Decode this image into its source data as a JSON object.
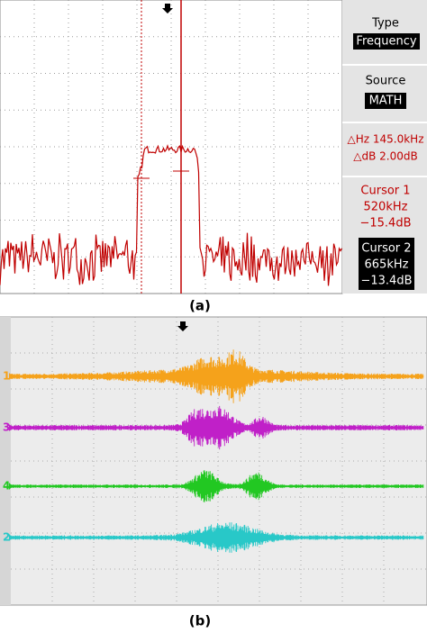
{
  "panel_a": {
    "sidebar": {
      "type_label": "Type",
      "type_value": "Frequency",
      "source_label": "Source",
      "source_value": "MATH",
      "delta_hz": "△Hz 145.0kHz",
      "delta_db": "△dB 2.00dB",
      "cursor1": {
        "title": "Cursor 1",
        "freq": "520kHz",
        "level": "−15.4dB"
      },
      "cursor2": {
        "title": "Cursor 2",
        "freq": "665kHz",
        "level": "−13.4dB"
      }
    },
    "caption": "(a)"
  },
  "panel_b": {
    "channels": [
      "1",
      "3",
      "4",
      "2"
    ],
    "caption": "(b)"
  }
}
